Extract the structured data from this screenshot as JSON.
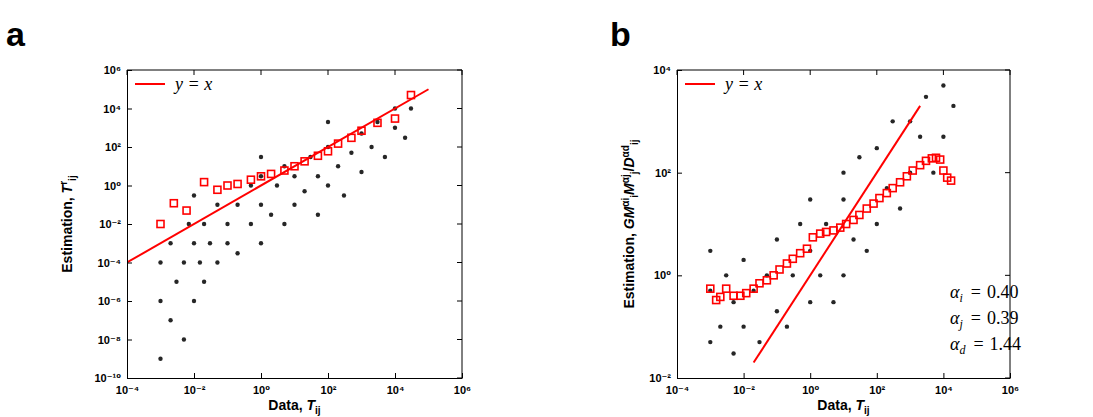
{
  "chart_data": [
    {
      "type": "scatter",
      "title": "a",
      "log": true,
      "legend": "upper left",
      "xlabel": [
        {
          "text": "Data, "
        },
        {
          "text": "T",
          "style": "italic"
        },
        {
          "text": "ij",
          "style": "sub"
        }
      ],
      "ylabel": [
        {
          "text": "Estimation, "
        },
        {
          "text": "T",
          "style": "italic"
        },
        {
          "text": "r",
          "style": "sup"
        },
        {
          "text": "ij",
          "style": "sub"
        }
      ],
      "xlim": [
        0.0001,
        1000000
      ],
      "ylim": [
        1e-10,
        1000000
      ],
      "xticks": [
        {
          "value": 0.0001,
          "label": "10⁻⁴"
        },
        {
          "value": 0.01,
          "label": "10⁻²"
        },
        {
          "value": 1,
          "label": "10⁰"
        },
        {
          "value": 100,
          "label": "10²"
        },
        {
          "value": 10000,
          "label": "10⁴"
        },
        {
          "value": 1000000,
          "label": "10⁶"
        }
      ],
      "yticks": [
        {
          "value": 1e-10,
          "label": "10⁻¹⁰"
        },
        {
          "value": 1e-08,
          "label": "10⁻⁸"
        },
        {
          "value": 1e-06,
          "label": "10⁻⁶"
        },
        {
          "value": 0.0001,
          "label": "10⁻⁴"
        },
        {
          "value": 0.01,
          "label": "10⁻²"
        },
        {
          "value": 1,
          "label": "10⁰"
        },
        {
          "value": 100,
          "label": "10²"
        },
        {
          "value": 10000,
          "label": "10⁴"
        },
        {
          "value": 1000000,
          "label": "10⁶"
        }
      ],
      "series": [
        {
          "type": "scatter",
          "marker": "dot",
          "color": "#000000",
          "x": [
            0.001,
            0.001,
            0.001,
            0.002,
            0.002,
            0.003,
            0.005,
            0.005,
            0.007,
            0.01,
            0.01,
            0.015,
            0.02,
            0.02,
            0.03,
            0.05,
            0.05,
            0.1,
            0.1,
            0.2,
            0.2,
            0.5,
            0.5,
            1,
            1,
            1,
            2,
            3,
            5,
            5,
            10,
            10,
            20,
            30,
            50,
            50,
            100,
            100,
            200,
            300,
            500,
            1000,
            1000,
            2000,
            3000,
            5000,
            10000,
            10000,
            20000,
            30000,
            0.01,
            1,
            100
          ],
          "values": [
            1e-09,
            1e-06,
            0.0001,
            1e-07,
            0.001,
            1e-05,
            1e-08,
            0.0001,
            0.01,
            1e-06,
            0.001,
            0.0001,
            0.01,
            1e-05,
            0.001,
            0.0001,
            0.1,
            0.001,
            0.01,
            0.0003,
            0.1,
            0.01,
            1,
            0.001,
            0.1,
            3,
            0.03,
            1,
            0.01,
            10,
            0.1,
            3,
            0.5,
            30,
            0.03,
            3,
            1,
            100,
            10,
            0.3,
            50,
            5,
            500,
            100,
            2000,
            30,
            1000,
            10000,
            300,
            10000,
            0.3,
            30,
            2000
          ]
        },
        {
          "type": "scatter",
          "marker": "square",
          "color": "#ff0000",
          "x": [
            0.001,
            0.0025,
            0.006,
            0.02,
            0.05,
            0.1,
            0.2,
            0.5,
            1,
            2,
            5,
            10,
            20,
            50,
            100,
            200,
            500,
            1000,
            3000,
            10000,
            30000
          ],
          "values": [
            0.01,
            0.12,
            0.05,
            1.5,
            0.6,
            1,
            1.2,
            2,
            3,
            4,
            6,
            10,
            18,
            35,
            60,
            150,
            300,
            700,
            1800,
            3000,
            50000
          ]
        },
        {
          "type": "line",
          "name": "y = x",
          "line_style": "solid",
          "color": "#ff0000",
          "x": [
            0.0001,
            100000
          ],
          "values": [
            0.0001,
            100000
          ]
        }
      ]
    },
    {
      "type": "scatter",
      "title": "b",
      "log": true,
      "legend": "upper left",
      "xlabel": [
        {
          "text": "Data, "
        },
        {
          "text": "T",
          "style": "italic"
        },
        {
          "text": "ij",
          "style": "sub"
        }
      ],
      "ylabel": [
        {
          "text": "Estimation, "
        },
        {
          "text": "GM",
          "style": "italic"
        },
        {
          "text": "αi",
          "style": "sup"
        },
        {
          "text": "i",
          "style": "sub"
        },
        {
          "text": "M",
          "style": "italic"
        },
        {
          "text": "αj",
          "style": "sup"
        },
        {
          "text": "j",
          "style": "sub"
        },
        {
          "text": "/"
        },
        {
          "text": "D",
          "style": "italic"
        },
        {
          "text": "αd",
          "style": "sup"
        },
        {
          "text": "ij",
          "style": "sub"
        }
      ],
      "xlim": [
        0.0001,
        1000000
      ],
      "ylim": [
        0.01,
        10000
      ],
      "xticks": [
        {
          "value": 0.0001,
          "label": "10⁻⁴"
        },
        {
          "value": 0.01,
          "label": "10⁻²"
        },
        {
          "value": 1,
          "label": "10⁰"
        },
        {
          "value": 100,
          "label": "10²"
        },
        {
          "value": 10000,
          "label": "10⁴"
        },
        {
          "value": 1000000,
          "label": "10⁶"
        }
      ],
      "yticks": [
        {
          "value": 0.01,
          "label": "10⁻²"
        },
        {
          "value": 1,
          "label": "10⁰"
        },
        {
          "value": 100,
          "label": "10²"
        },
        {
          "value": 10000,
          "label": "10⁴"
        }
      ],
      "annotations": [
        {
          "symbol": "α",
          "subscript": "i",
          "relation": "=",
          "value": 0.4,
          "label": "0.40"
        },
        {
          "symbol": "α",
          "subscript": "j",
          "relation": "=",
          "value": 0.39,
          "label": "0.39"
        },
        {
          "symbol": "α",
          "subscript": "d",
          "relation": "=",
          "value": 1.44,
          "label": "1.44"
        }
      ],
      "series": [
        {
          "type": "scatter",
          "marker": "dot",
          "color": "#000000",
          "x": [
            0.001,
            0.001,
            0.001,
            0.002,
            0.003,
            0.005,
            0.005,
            0.01,
            0.01,
            0.02,
            0.03,
            0.05,
            0.1,
            0.1,
            0.2,
            0.3,
            0.5,
            1,
            1,
            1,
            2,
            3,
            5,
            10,
            10,
            10,
            20,
            30,
            50,
            100,
            100,
            200,
            300,
            500,
            1000,
            1000,
            2000,
            3000,
            5000,
            10000,
            10000,
            20000
          ],
          "values": [
            0.05,
            0.5,
            3,
            0.1,
            1,
            0.03,
            0.3,
            2,
            0.1,
            0.5,
            0.05,
            1,
            0.2,
            5,
            0.1,
            1,
            10,
            0.3,
            3,
            30,
            1,
            10,
            0.3,
            1,
            30,
            100,
            5,
            200,
            3,
            10,
            300,
            50,
            1000,
            20,
            100,
            1000,
            500,
            3000,
            100,
            500,
            5000,
            2000
          ]
        },
        {
          "type": "scatter",
          "marker": "square",
          "color": "#ff0000",
          "x": [
            0.001,
            0.0015,
            0.002,
            0.003,
            0.005,
            0.008,
            0.012,
            0.02,
            0.03,
            0.05,
            0.08,
            0.12,
            0.2,
            0.3,
            0.5,
            0.8,
            1.2,
            2,
            3,
            5,
            8,
            12,
            20,
            30,
            50,
            80,
            120,
            200,
            300,
            500,
            800,
            1200,
            2000,
            3000,
            4500,
            6000,
            8000,
            10000,
            13000,
            17000
          ],
          "values": [
            0.55,
            0.33,
            0.38,
            0.55,
            0.4,
            0.4,
            0.45,
            0.55,
            0.7,
            0.8,
            1.0,
            1.3,
            1.7,
            2.1,
            2.7,
            3.3,
            5.5,
            6.5,
            7,
            7.5,
            8.5,
            10,
            12,
            15,
            20,
            25,
            32,
            40,
            50,
            65,
            85,
            110,
            140,
            170,
            190,
            195,
            180,
            110,
            80,
            70
          ]
        },
        {
          "type": "line",
          "name": "y = x",
          "line_style": "solid",
          "color": "#ff0000",
          "x": [
            0.02,
            2000
          ],
          "values": [
            0.02,
            2000
          ]
        }
      ]
    }
  ]
}
